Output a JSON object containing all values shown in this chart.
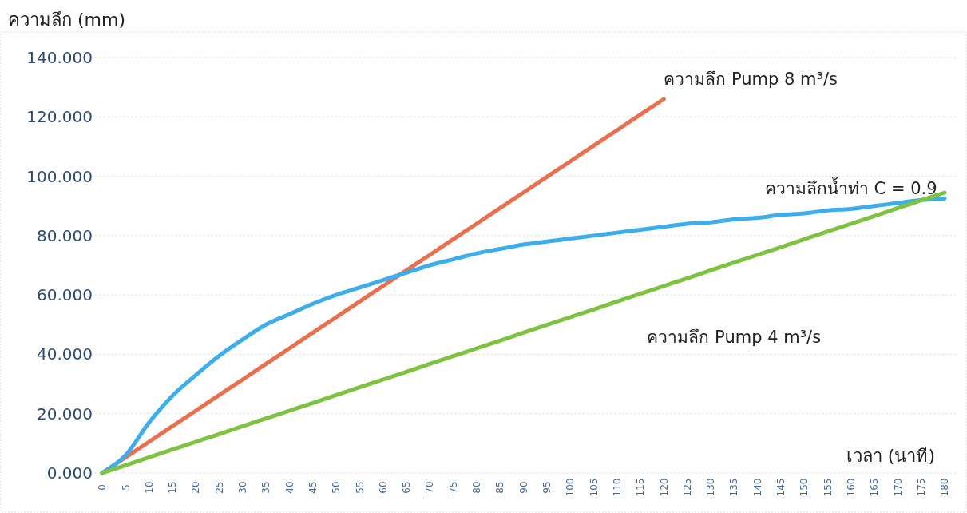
{
  "chart_data": {
    "type": "line",
    "xlabel": "เวลา (นาที)",
    "ylabel": "ความลึก (mm)",
    "categories": [
      "0",
      "5",
      "10",
      "15",
      "20",
      "25",
      "30",
      "35",
      "40",
      "45",
      "50",
      "55",
      "60",
      "65",
      "70",
      "75",
      "80",
      "85",
      "90",
      "95",
      "100",
      "105",
      "110",
      "115",
      "120",
      "125",
      "130",
      "135",
      "140",
      "145",
      "150",
      "155",
      "160",
      "165",
      "170",
      "175",
      "180"
    ],
    "series": [
      {
        "name": "ความลึก Pump 8 m³/s",
        "color": "#e8704f",
        "values": [
          0,
          5.3,
          10.5,
          15.8,
          21,
          26.3,
          31.5,
          36.8,
          42,
          47.3,
          52.5,
          57.8,
          63,
          68.3,
          73.5,
          78.8,
          84,
          89.3,
          94.5,
          99.8,
          105,
          110.3,
          115.5,
          120.8,
          126,
          null,
          null,
          null,
          null,
          null,
          null,
          null,
          null,
          null,
          null,
          null,
          null
        ]
      },
      {
        "name": "ความลึกน้ำท่า C = 0.9",
        "color": "#3daee9",
        "values": [
          0,
          6,
          17,
          26,
          33,
          39.5,
          45,
          50,
          53.5,
          57,
          60,
          62.5,
          65,
          67.5,
          70,
          72,
          74,
          75.5,
          77,
          78,
          79,
          80,
          81,
          82,
          83,
          84,
          84.5,
          85.5,
          86,
          87,
          87.5,
          88.5,
          89,
          90,
          91,
          92,
          92.5
        ]
      },
      {
        "name": "ความลึก Pump 4 m³/s",
        "color": "#7fc241",
        "values": [
          0,
          2.6,
          5.3,
          7.9,
          10.5,
          13.1,
          15.8,
          18.4,
          21,
          23.6,
          26.3,
          28.9,
          31.5,
          34.1,
          36.8,
          39.4,
          42,
          44.6,
          47.3,
          49.9,
          52.5,
          55.1,
          57.8,
          60.4,
          63,
          65.6,
          68.3,
          70.9,
          73.5,
          76.1,
          78.8,
          81.4,
          84,
          86.6,
          89.3,
          91.9,
          94.5
        ]
      }
    ],
    "ylim": [
      0,
      140
    ],
    "yticks": [
      {
        "value": 0,
        "label": "0.000"
      },
      {
        "value": 20,
        "label": "20.000"
      },
      {
        "value": 40,
        "label": "40.000"
      },
      {
        "value": 60,
        "label": "60.000"
      },
      {
        "value": 80,
        "label": "80.000"
      },
      {
        "value": 100,
        "label": "100.000"
      },
      {
        "value": 120,
        "label": "120.000"
      },
      {
        "value": 140,
        "label": "140.000"
      }
    ],
    "grid": "y",
    "marker": "none",
    "line_style": "solid"
  }
}
